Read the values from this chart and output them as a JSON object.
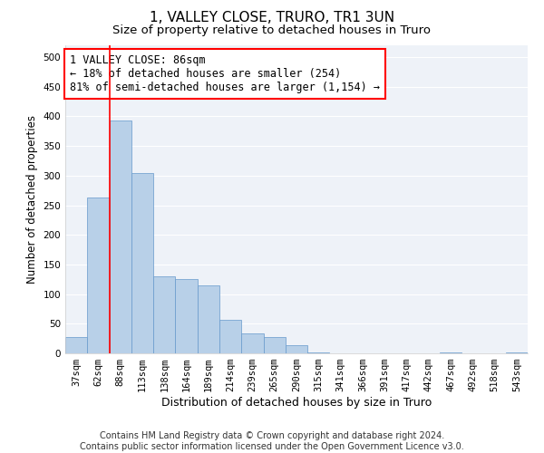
{
  "title": "1, VALLEY CLOSE, TRURO, TR1 3UN",
  "subtitle": "Size of property relative to detached houses in Truro",
  "xlabel": "Distribution of detached houses by size in Truro",
  "ylabel": "Number of detached properties",
  "footer_line1": "Contains HM Land Registry data © Crown copyright and database right 2024.",
  "footer_line2": "Contains public sector information licensed under the Open Government Licence v3.0.",
  "categories": [
    "37sqm",
    "62sqm",
    "88sqm",
    "113sqm",
    "138sqm",
    "164sqm",
    "189sqm",
    "214sqm",
    "239sqm",
    "265sqm",
    "290sqm",
    "315sqm",
    "341sqm",
    "366sqm",
    "391sqm",
    "417sqm",
    "442sqm",
    "467sqm",
    "492sqm",
    "518sqm",
    "543sqm"
  ],
  "values": [
    28,
    263,
    393,
    305,
    130,
    125,
    115,
    57,
    33,
    27,
    14,
    1,
    0,
    0,
    0,
    0,
    0,
    1,
    0,
    0,
    1
  ],
  "bar_color": "#b8d0e8",
  "bar_edgecolor": "#6699cc",
  "vline_color": "red",
  "vline_position": 1.5,
  "annotation_text": "1 VALLEY CLOSE: 86sqm\n← 18% of detached houses are smaller (254)\n81% of semi-detached houses are larger (1,154) →",
  "annotation_box_facecolor": "white",
  "annotation_box_edgecolor": "red",
  "ylim": [
    0,
    520
  ],
  "yticks": [
    0,
    50,
    100,
    150,
    200,
    250,
    300,
    350,
    400,
    450,
    500
  ],
  "bg_color": "#eef2f8",
  "grid_color": "white",
  "title_fontsize": 11,
  "subtitle_fontsize": 9.5,
  "axis_label_fontsize": 9,
  "ylabel_fontsize": 8.5,
  "tick_fontsize": 7.5,
  "annotation_fontsize": 8.5,
  "footer_fontsize": 7
}
